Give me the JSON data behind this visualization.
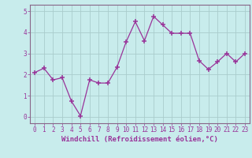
{
  "x": [
    0,
    1,
    2,
    3,
    4,
    5,
    6,
    7,
    8,
    9,
    10,
    11,
    12,
    13,
    14,
    15,
    16,
    17,
    18,
    19,
    20,
    21,
    22,
    23
  ],
  "y": [
    2.1,
    2.3,
    1.75,
    1.85,
    0.75,
    0.05,
    1.75,
    1.6,
    1.6,
    2.35,
    3.55,
    4.5,
    3.6,
    4.75,
    4.35,
    3.95,
    3.95,
    3.95,
    2.65,
    2.25,
    2.6,
    3.0,
    2.6,
    3.0
  ],
  "line_color": "#993399",
  "marker": "+",
  "marker_size": 4,
  "bg_color": "#c8ecec",
  "grid_color": "#aacccc",
  "xlabel": "Windchill (Refroidissement éolien,°C)",
  "xlim": [
    -0.5,
    23.5
  ],
  "ylim": [
    -0.3,
    5.3
  ],
  "yticks": [
    0,
    1,
    2,
    3,
    4,
    5
  ],
  "xticks": [
    0,
    1,
    2,
    3,
    4,
    5,
    6,
    7,
    8,
    9,
    10,
    11,
    12,
    13,
    14,
    15,
    16,
    17,
    18,
    19,
    20,
    21,
    22,
    23
  ],
  "tick_color": "#993399",
  "spine_color": "#886688",
  "xlabel_fontsize": 6.5,
  "tick_fontsize": 5.5
}
